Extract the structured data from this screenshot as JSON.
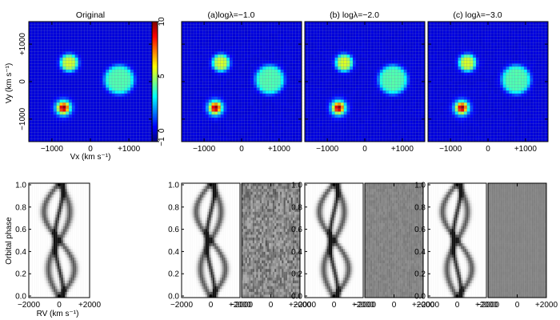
{
  "chart_data": [
    {
      "type": "heatmap",
      "id": "map-original",
      "title": "Original",
      "xlabel": "Vx (km s⁻¹)",
      "ylabel": "Vy (km s⁻¹)",
      "xlim": [
        -1600,
        1600
      ],
      "ylim": [
        -1600,
        1600
      ],
      "xticks": [
        "−1000",
        "0",
        "+1000"
      ],
      "yticks": [
        "+1000",
        "0",
        "−1000"
      ],
      "grid": true,
      "background_value": 0,
      "spots": [
        {
          "vx": -700,
          "vy": -700,
          "radius": 250,
          "peak": 10,
          "profile": "gaussian"
        },
        {
          "vx": -550,
          "vy": 500,
          "radius": 220,
          "value": 5.5,
          "profile": "flat"
        },
        {
          "vx": 750,
          "vy": 50,
          "radius": 380,
          "value": 4,
          "profile": "flat"
        }
      ]
    },
    {
      "type": "heatmap",
      "id": "map-a",
      "title": "(a)logλ=−1.0",
      "xlim": [
        -1600,
        1600
      ],
      "ylim": [
        -1600,
        1600
      ],
      "xticks": [
        "−1000",
        "0",
        "+1000"
      ]
    },
    {
      "type": "heatmap",
      "id": "map-b",
      "title": "(b) logλ=−2.0",
      "xlim": [
        -1600,
        1600
      ],
      "ylim": [
        -1600,
        1600
      ],
      "xticks": [
        "−1000",
        "0",
        "+1000"
      ]
    },
    {
      "type": "heatmap",
      "id": "map-c",
      "title": "(c) logλ=−3.0",
      "xlim": [
        -1600,
        1600
      ],
      "ylim": [
        -1600,
        1600
      ],
      "xticks": [
        "−1000",
        "0",
        "+1000"
      ]
    },
    {
      "type": "heatmap",
      "id": "trailed-spectra",
      "xlabel": "RV (km s⁻¹)",
      "ylabel": "Orbital phase",
      "xlim": [
        -2000,
        2000
      ],
      "ylim": [
        0.0,
        1.0
      ],
      "xticks": [
        "−2000",
        "0",
        "+2000"
      ],
      "yticks": [
        "1.0",
        "0.8",
        "0.6",
        "0.4",
        "0.2",
        "0.0"
      ],
      "components": [
        {
          "semi_amplitude": 1000,
          "phase_offset": 0.0,
          "width": 160,
          "strength": 0.7
        },
        {
          "semi_amplitude": 700,
          "phase_offset": 0.5,
          "width": 160,
          "strength": 0.7
        },
        {
          "semi_amplitude": 300,
          "phase_offset": 0.25,
          "width": 110,
          "strength": 0.9
        }
      ],
      "panels": [
        "original",
        "model-a",
        "residual-a",
        "model-b",
        "residual-b",
        "model-c",
        "residual-c"
      ],
      "residual_noise": {
        "a": 0.35,
        "b": 0.08,
        "c": 0.02
      }
    }
  ],
  "colorbar": {
    "ticks": [
      "10",
      "5",
      "0",
      "−1"
    ],
    "vmin": -1,
    "vmax": 10,
    "colormap": "jet"
  }
}
